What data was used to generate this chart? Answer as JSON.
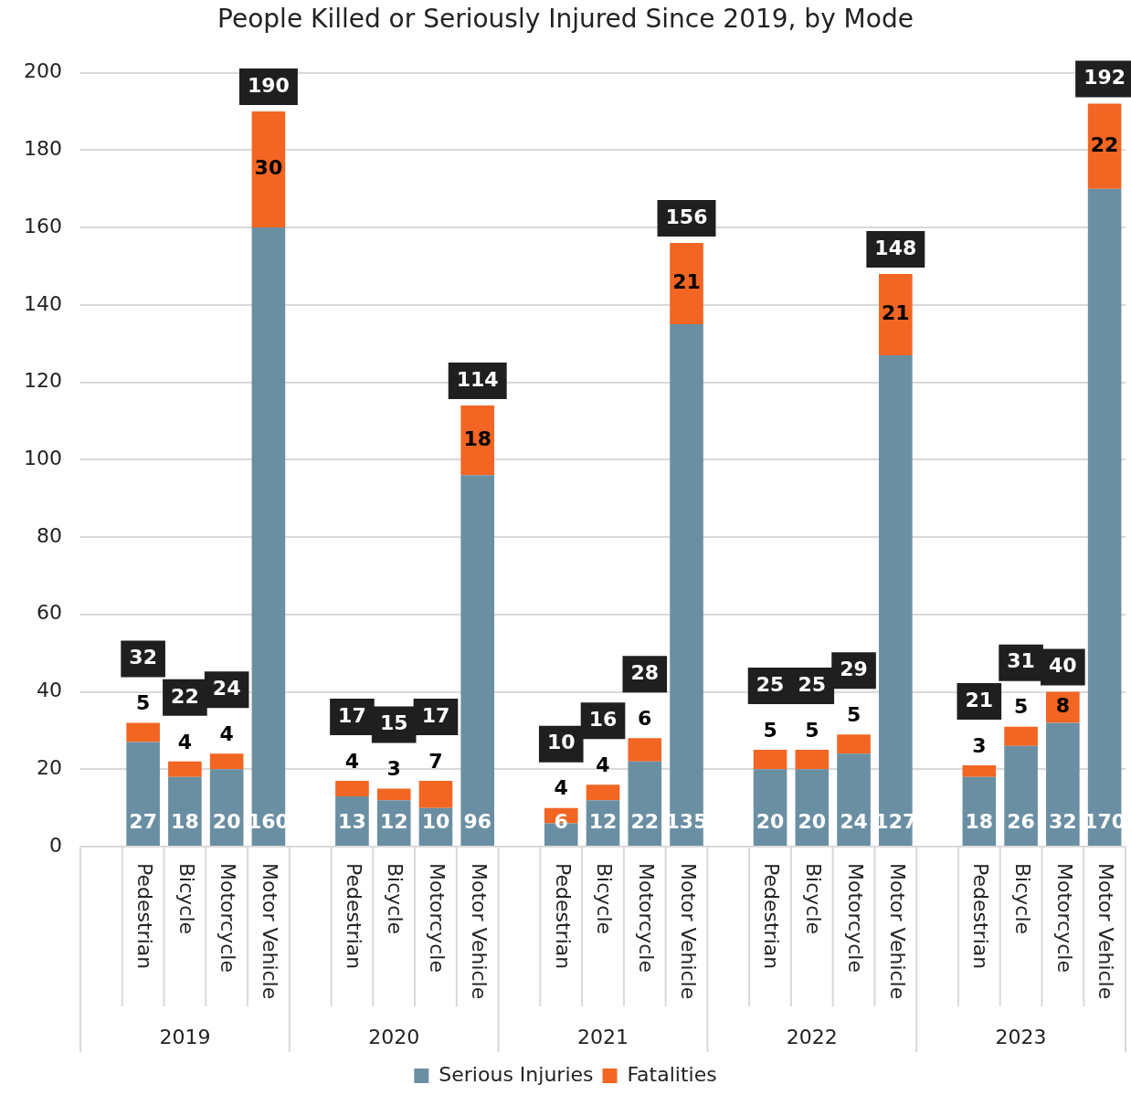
{
  "chart_data": {
    "type": "bar",
    "title": "People Killed or Seriously Injured Since 2019, by Mode",
    "categories": [
      "Pedestrian",
      "Bicycle",
      "Motorcycle",
      "Motor Vehicle",
      "Pedestrian",
      "Bicycle",
      "Motorcycle",
      "Motor Vehicle",
      "Pedestrian",
      "Bicycle",
      "Motorcycle",
      "Motor Vehicle",
      "Pedestrian",
      "Bicycle",
      "Motorcycle",
      "Motor Vehicle",
      "Pedestrian",
      "Bicycle",
      "Motorcycle",
      "Motor Vehicle"
    ],
    "series": [
      {
        "name": "Serious Injuries",
        "color": "#6a8fa3",
        "values": [
          27,
          18,
          20,
          160,
          13,
          12,
          10,
          96,
          6,
          12,
          22,
          135,
          20,
          20,
          24,
          127,
          18,
          26,
          32,
          170
        ]
      },
      {
        "name": "Fatalities",
        "color": "#f26522",
        "values": [
          5,
          4,
          4,
          30,
          4,
          3,
          7,
          18,
          4,
          4,
          6,
          21,
          5,
          5,
          5,
          21,
          3,
          5,
          8,
          22
        ]
      }
    ],
    "stacked": true,
    "data_labels": true,
    "totals": [
      "32",
      "22",
      "24",
      "190",
      "17",
      "15",
      "17",
      "114",
      "10",
      "16",
      "28",
      "156",
      "25",
      "25",
      "29",
      "148",
      "21",
      "31",
      "40",
      "192"
    ],
    "annotations": [
      "2019",
      "2020",
      "2021",
      "2022",
      "2023"
    ],
    "ylim": [
      0,
      200
    ],
    "yticks": [
      0,
      20,
      40,
      60,
      80,
      100,
      120,
      140,
      160,
      180,
      200
    ],
    "grid": "y",
    "legend": "bottom"
  }
}
